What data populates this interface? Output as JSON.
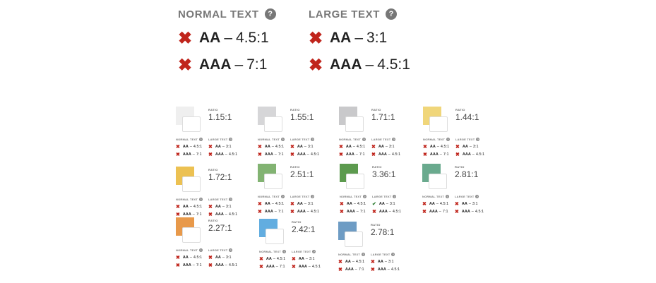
{
  "legend": {
    "normal": {
      "title": "NORMAL TEXT",
      "help": "?",
      "aa": {
        "level": "AA",
        "dash": "–",
        "ratio": "4.5:1",
        "status": "fail"
      },
      "aaa": {
        "level": "AAA",
        "dash": "–",
        "ratio": "7:1",
        "status": "fail"
      }
    },
    "large": {
      "title": "LARGE TEXT",
      "help": "?",
      "aa": {
        "level": "AA",
        "dash": "–",
        "ratio": "3:1",
        "status": "fail"
      },
      "aaa": {
        "level": "AAA",
        "dash": "–",
        "ratio": "4.5:1",
        "status": "fail"
      }
    },
    "fail_glyph": "✖",
    "pass_glyph": "✔"
  },
  "card_labels": {
    "ratio": "RATIO",
    "normal": "NORMAL TEXT",
    "large": "LARGE TEXT",
    "help": "?",
    "aa": "AA",
    "aaa": "AAA",
    "dash": "–",
    "n_aa": "4.5:1",
    "n_aaa": "7:1",
    "l_aa": "3:1",
    "l_aaa": "4.5:1"
  },
  "cards": [
    {
      "color": "#efefef",
      "ratio": "1.15:1",
      "large_aa_pass": false
    },
    {
      "color": "#d6d6d8",
      "ratio": "1.55:1",
      "large_aa_pass": false
    },
    {
      "color": "#c9c9cb",
      "ratio": "1.71:1",
      "large_aa_pass": false
    },
    {
      "color": "#f0d67a",
      "ratio": "1.44:1",
      "large_aa_pass": false
    },
    {
      "color": "#ecc152",
      "ratio": "1.72:1",
      "large_aa_pass": false
    },
    {
      "color": "#82b372",
      "ratio": "2.51:1",
      "large_aa_pass": false
    },
    {
      "color": "#5c9a4e",
      "ratio": "3.36:1",
      "large_aa_pass": true
    },
    {
      "color": "#6aaa8e",
      "ratio": "2.81:1",
      "large_aa_pass": false
    },
    {
      "color": "#e8994a",
      "ratio": "2.27:1",
      "large_aa_pass": false
    },
    {
      "color": "#62ade0",
      "ratio": "2.42:1",
      "large_aa_pass": false
    },
    {
      "color": "#6e9cc4",
      "ratio": "2.78:1",
      "large_aa_pass": false
    }
  ]
}
